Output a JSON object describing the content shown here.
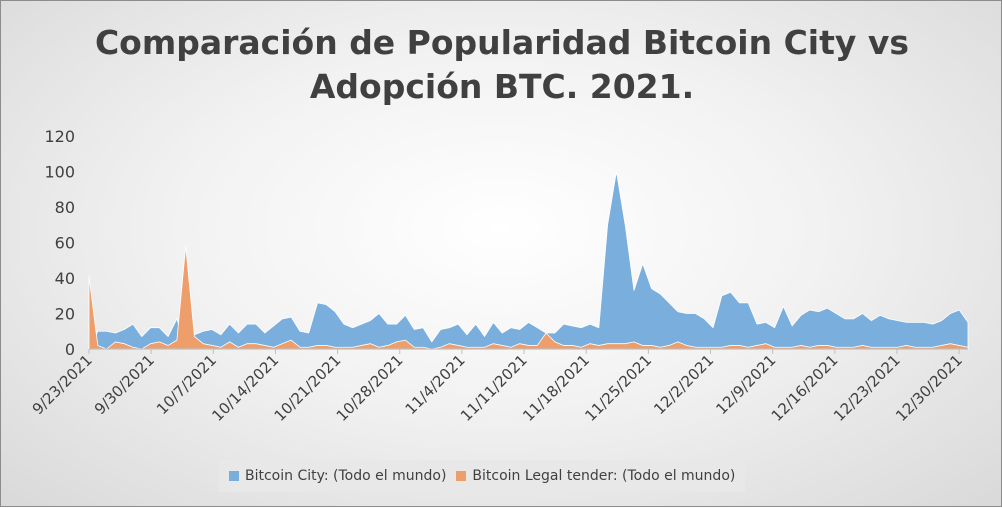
{
  "colors": {
    "series1": "#7aaedd",
    "series2": "#ee9e6a",
    "axis": "#bfbfbf",
    "text": "#404040"
  },
  "chart_data": {
    "type": "area",
    "title_line1": "Comparación de Popularidad Bitcoin City vs",
    "title_line2": "Adopción BTC. 2021.",
    "xlabel": "",
    "ylabel": "",
    "ylim": [
      0,
      120
    ],
    "yticks": [
      0,
      20,
      40,
      60,
      80,
      100,
      120
    ],
    "grid": false,
    "legend_position": "bottom",
    "x_start": "9/23/2021",
    "x_end": "12/31/2021",
    "xtick_labels": [
      "9/23/2021",
      "9/30/2021",
      "10/7/2021",
      "10/14/2021",
      "10/21/2021",
      "10/28/2021",
      "11/4/2021",
      "11/11/2021",
      "11/18/2021",
      "11/25/2021",
      "12/2/2021",
      "12/9/2021",
      "12/16/2021",
      "12/23/2021",
      "12/30/2021"
    ],
    "series": [
      {
        "name": "Bitcoin City: (Todo el mundo)",
        "values": [
          0,
          10,
          10,
          9,
          11,
          14,
          7,
          12,
          12,
          7,
          17,
          0,
          8,
          10,
          11,
          8,
          14,
          9,
          14,
          14,
          9,
          13,
          17,
          18,
          10,
          9,
          26,
          25,
          21,
          14,
          12,
          14,
          16,
          20,
          14,
          14,
          19,
          11,
          12,
          4,
          11,
          12,
          14,
          8,
          14,
          7,
          15,
          9,
          12,
          11,
          15,
          12,
          9,
          9,
          14,
          13,
          12,
          14,
          12,
          70,
          100,
          70,
          33,
          48,
          34,
          31,
          26,
          21,
          20,
          20,
          17,
          12,
          30,
          32,
          26,
          26,
          14,
          15,
          12,
          24,
          13,
          19,
          22,
          21,
          23,
          20,
          17,
          17,
          20,
          16,
          19,
          17,
          16,
          15,
          15,
          15,
          14,
          16,
          20,
          22,
          15
        ]
      },
      {
        "name": "Bitcoin Legal tender: (Todo el mundo)",
        "values": [
          41,
          2,
          0,
          4,
          3,
          1,
          0,
          3,
          4,
          2,
          5,
          58,
          7,
          3,
          2,
          1,
          4,
          1,
          3,
          3,
          2,
          1,
          3,
          5,
          1,
          1,
          2,
          2,
          1,
          1,
          1,
          2,
          3,
          1,
          2,
          4,
          5,
          1,
          1,
          0,
          1,
          3,
          2,
          1,
          1,
          1,
          3,
          2,
          1,
          3,
          2,
          2,
          9,
          4,
          2,
          2,
          1,
          3,
          2,
          3,
          3,
          3,
          4,
          2,
          2,
          1,
          2,
          4,
          2,
          1,
          1,
          1,
          1,
          2,
          2,
          1,
          2,
          3,
          1,
          1,
          1,
          2,
          1,
          2,
          2,
          1,
          1,
          1,
          2,
          1,
          1,
          1,
          1,
          2,
          1,
          1,
          1,
          2,
          3,
          2,
          1
        ]
      }
    ]
  }
}
